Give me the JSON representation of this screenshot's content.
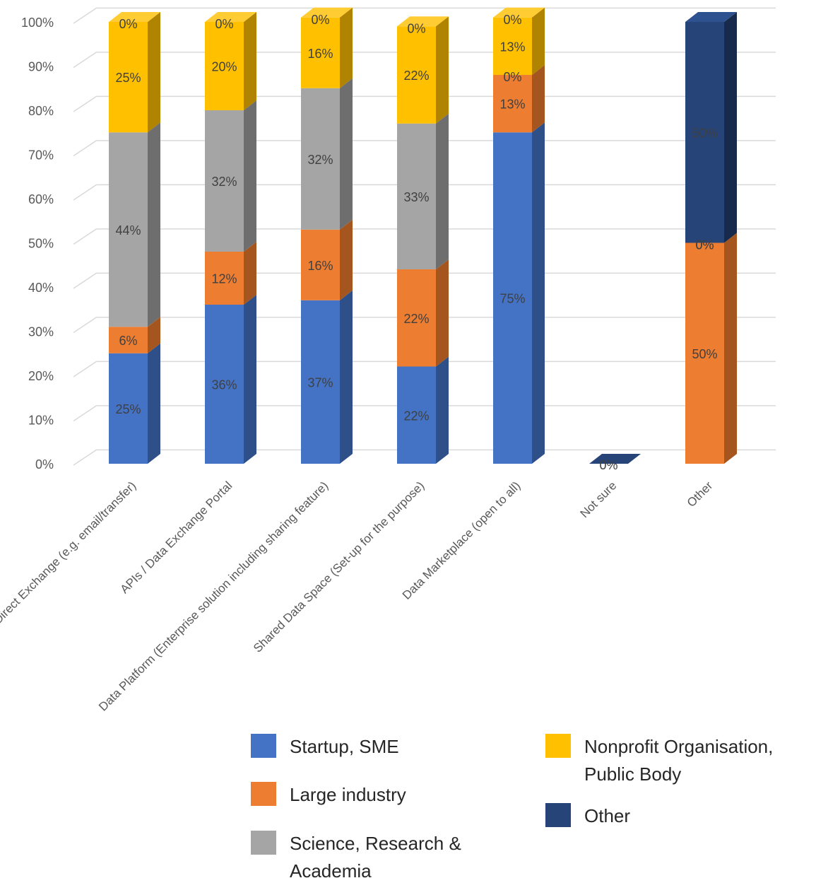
{
  "chart_data": {
    "type": "bar",
    "stacked": true,
    "three_d": true,
    "title": "",
    "xlabel": "",
    "ylabel": "",
    "ylim": [
      0,
      100
    ],
    "yticks": [
      "0%",
      "10%",
      "20%",
      "30%",
      "40%",
      "50%",
      "60%",
      "70%",
      "80%",
      "90%",
      "100%"
    ],
    "grid": true,
    "legend_position": "bottom-right",
    "categories": [
      "Direct Exchange (e.g. email/transfer)",
      "APIs / Data Exchange Portal",
      "Data Platform (Enterprise solution including sharing feature)",
      "Shared Data Space (Set-up for the purpose)",
      "Data Marketplace (open to all)",
      "Not sure",
      "Other"
    ],
    "series": [
      {
        "name": "Startup, SME",
        "color": "#4472C4",
        "side_color": "#2F4F89",
        "top_color": "#5B86D1",
        "values": [
          25,
          36,
          37,
          22,
          75,
          0,
          0
        ],
        "labels": [
          "25%",
          "36%",
          "37%",
          "22%",
          "75%",
          "0%",
          "0%"
        ]
      },
      {
        "name": "Large industry",
        "color": "#ED7D31",
        "side_color": "#A5561F",
        "top_color": "#F09048",
        "values": [
          6,
          12,
          16,
          22,
          13,
          0,
          50
        ],
        "labels": [
          "6%",
          "12%",
          "16%",
          "22%",
          "13%",
          "0%",
          "50%"
        ]
      },
      {
        "name": "Science, Research & Academia",
        "color": "#A5A5A5",
        "side_color": "#6E6E6E",
        "top_color": "#B5B5B5",
        "values": [
          44,
          32,
          32,
          33,
          0,
          0,
          0
        ],
        "labels": [
          "44%",
          "32%",
          "32%",
          "33%",
          "0%",
          "0%",
          "0%"
        ]
      },
      {
        "name": "Nonprofit Organisation, Public Body",
        "color": "#FFC000",
        "side_color": "#B08400",
        "top_color": "#FFCC33",
        "values": [
          25,
          20,
          16,
          22,
          13,
          0,
          0
        ],
        "labels": [
          "25%",
          "20%",
          "16%",
          "22%",
          "13%",
          "0%",
          "0%"
        ]
      },
      {
        "name": "Other",
        "color": "#264478",
        "side_color": "#172A4B",
        "top_color": "#2E5290",
        "values": [
          0,
          0,
          0,
          0,
          0,
          0,
          50
        ],
        "labels": [
          "0%",
          "0%",
          "0%",
          "0%",
          "0%",
          "0%",
          "50%"
        ]
      }
    ],
    "legend": [
      {
        "label": "Startup, SME",
        "color": "#4472C4"
      },
      {
        "label": "Large industry",
        "color": "#ED7D31"
      },
      {
        "label": "Science, Research &",
        "label2": "Academia",
        "color": "#A5A5A5"
      },
      {
        "label": "Nonprofit Organisation,",
        "label2": "Public Body",
        "color": "#FFC000"
      },
      {
        "label": "Other",
        "color": "#264478"
      }
    ]
  }
}
